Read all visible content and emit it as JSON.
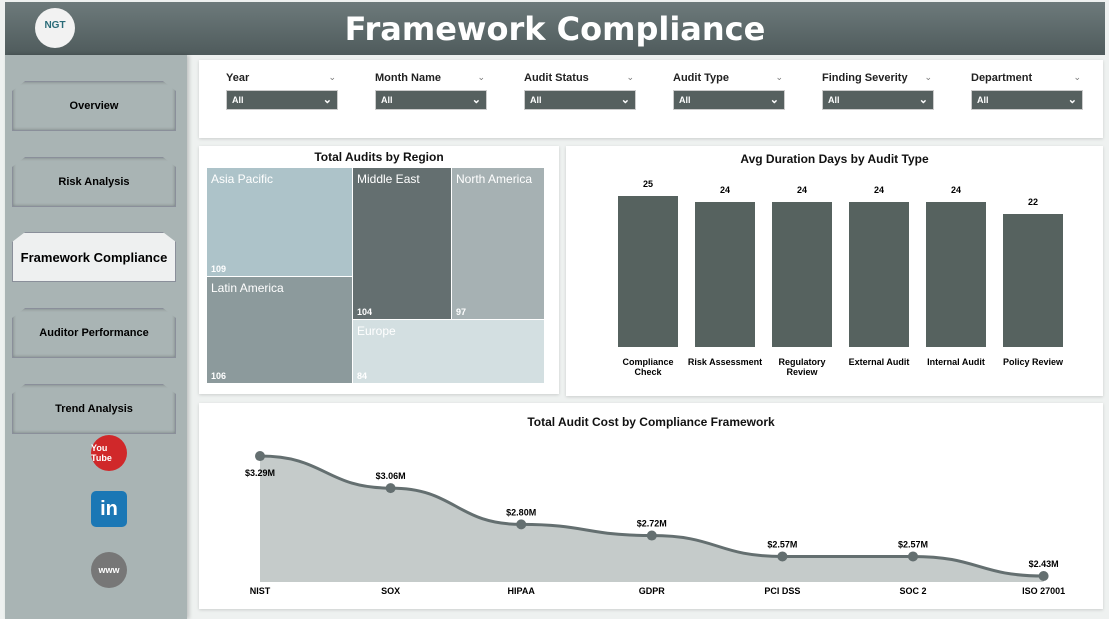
{
  "header": {
    "title": "Framework Compliance",
    "logo": "NGT"
  },
  "sidebar": {
    "items": [
      {
        "label": "Overview"
      },
      {
        "label": "Risk Analysis"
      },
      {
        "label": "Framework Compliance",
        "active": true
      },
      {
        "label": "Auditor Performance"
      },
      {
        "label": "Trend Analysis"
      }
    ],
    "social": [
      {
        "icon": "youtube-icon",
        "label": "You Tube"
      },
      {
        "icon": "linkedin-icon",
        "label": "in"
      },
      {
        "icon": "globe-icon",
        "label": "www"
      }
    ]
  },
  "filters": [
    {
      "label": "Year",
      "value": "All"
    },
    {
      "label": "Month Name",
      "value": "All"
    },
    {
      "label": "Audit Status",
      "value": "All"
    },
    {
      "label": "Audit Type",
      "value": "All"
    },
    {
      "label": "Finding Severity",
      "value": "All"
    },
    {
      "label": "Department",
      "value": "All"
    }
  ],
  "treemap": {
    "title": "Total Audits by Region",
    "items": [
      {
        "label": "Asia Pacific",
        "value": "109",
        "color": "#adc3c9"
      },
      {
        "label": "Latin America",
        "value": "106",
        "color": "#8c9a9c"
      },
      {
        "label": "Middle East",
        "value": "104",
        "color": "#646f70"
      },
      {
        "label": "North America",
        "value": "97",
        "color": "#a6b1b3"
      },
      {
        "label": "Europe",
        "value": "84",
        "color": "#d3dfe1"
      }
    ]
  },
  "chart_data": [
    {
      "type": "bar",
      "title": "Avg Duration Days by Audit Type",
      "categories": [
        "Compliance Check",
        "Risk Assessment",
        "Regulatory Review",
        "External Audit",
        "Internal Audit",
        "Policy Review"
      ],
      "values": [
        25,
        24,
        24,
        24,
        24,
        22
      ],
      "labels": [
        "25",
        "24",
        "24",
        "24",
        "24",
        "22"
      ],
      "color": "#56625f"
    },
    {
      "type": "area",
      "title": "Total Audit Cost by Compliance Framework",
      "categories": [
        "NIST",
        "SOX",
        "HIPAA",
        "GDPR",
        "PCI DSS",
        "SOC 2",
        "ISO 27001"
      ],
      "values": [
        3.29,
        3.06,
        2.8,
        2.72,
        2.57,
        2.57,
        2.43
      ],
      "labels": [
        "$3.29M",
        "$3.06M",
        "$2.80M",
        "$2.72M",
        "$2.57M",
        "$2.57M",
        "$2.43M"
      ],
      "color": "#646f70"
    }
  ]
}
